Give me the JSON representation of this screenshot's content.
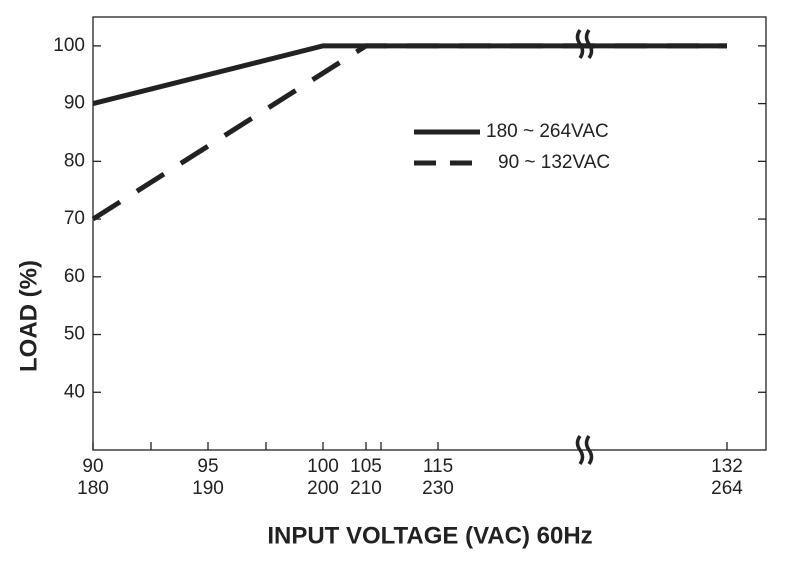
{
  "chart_data": {
    "type": "line",
    "y_label": "LOAD (%)",
    "x_label": "INPUT VOLTAGE (VAC) 60Hz",
    "ylim": [
      30,
      105
    ],
    "yticks": [
      40,
      50,
      60,
      70,
      80,
      90,
      100
    ],
    "xticks": [
      90,
      95,
      100,
      105,
      115,
      132
    ],
    "xticks_secondary": [
      180,
      190,
      200,
      210,
      230,
      264
    ],
    "legend": "upper right",
    "series": [
      {
        "name": "180 ~ 264VAC",
        "color": "#222222",
        "style": "solid",
        "x": [
          90,
          100,
          132
        ],
        "values": [
          90,
          100,
          100
        ]
      },
      {
        "name": "90 ~ 132VAC",
        "color": "#222222",
        "style": "dashed",
        "x": [
          90,
          105,
          132
        ],
        "values": [
          70,
          100,
          100
        ]
      }
    ]
  }
}
